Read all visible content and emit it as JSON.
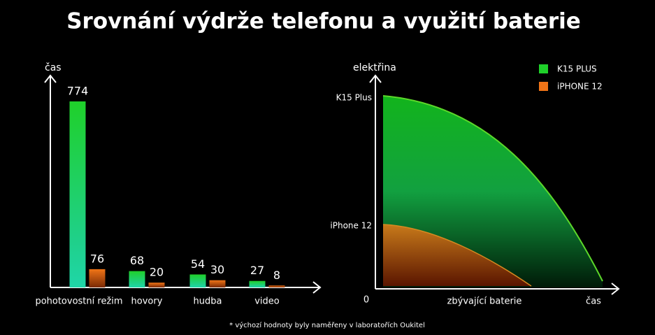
{
  "title": "Srovnání výdrže telefonu a využití baterie",
  "footnote": "* výchozí hodnoty byly naměřeny v laboratořích Oukitel",
  "chart_data": [
    {
      "type": "bar",
      "y_label": "čas",
      "categories": [
        "pohotovostní režim",
        "hovory",
        "hudba",
        "video"
      ],
      "series": [
        {
          "name": "K15 PLUS",
          "color": "#1fd02a",
          "values": [
            774,
            68,
            54,
            27
          ]
        },
        {
          "name": "iPHONE 12",
          "color": "#f07417",
          "values": [
            76,
            20,
            30,
            8
          ]
        }
      ]
    },
    {
      "type": "area",
      "y_label": "elektřina",
      "x_label": "zbývající baterie",
      "x_end_label": "čas",
      "origin_label": "0",
      "y_markers": [
        "K15 Plus",
        "iPhone 12"
      ],
      "legend": [
        {
          "name": "K15 PLUS",
          "color": "#1fd02a"
        },
        {
          "name": "iPHONE 12",
          "color": "#f07417"
        }
      ]
    }
  ]
}
